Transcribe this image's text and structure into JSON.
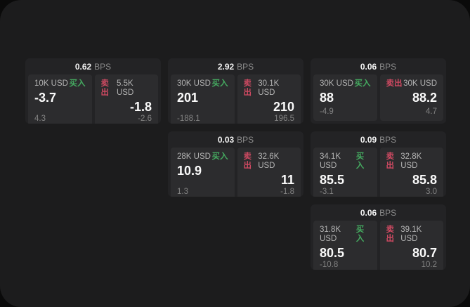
{
  "page": {
    "background": "#0a0a0a",
    "panel_background": "#1c1c1d"
  },
  "colors": {
    "buy_green": "#45aa60",
    "sell_red": "#d04a62",
    "price_white": "#fafafa",
    "muted_gray": "#828282"
  },
  "labels": {
    "bps_unit": "BPS",
    "buy": "买入",
    "sell": "卖出"
  },
  "cards": [
    {
      "row": 1,
      "col": 1,
      "bps": "0.62",
      "buy": {
        "size": "10K USD",
        "price": "-3.7",
        "delta": "4.3"
      },
      "sell": {
        "size": "5.5K USD",
        "price": "-1.8",
        "delta": "-2.6"
      }
    },
    {
      "row": 1,
      "col": 2,
      "bps": "2.92",
      "buy": {
        "size": "30K USD",
        "price": "201",
        "delta": "-188.1"
      },
      "sell": {
        "size": "30.1K USD",
        "price": "210",
        "delta": "196.5"
      }
    },
    {
      "row": 1,
      "col": 3,
      "bps": "0.06",
      "buy": {
        "size": "30K USD",
        "price": "88",
        "delta": "-4.9"
      },
      "sell": {
        "size": "30K USD",
        "price": "88.2",
        "delta": "4.7"
      }
    },
    {
      "row": 2,
      "col": 2,
      "bps": "0.03",
      "buy": {
        "size": "28K USD",
        "price": "10.9",
        "delta": "1.3"
      },
      "sell": {
        "size": "32.6K USD",
        "price": "11",
        "delta": "-1.8"
      }
    },
    {
      "row": 2,
      "col": 3,
      "bps": "0.09",
      "buy": {
        "size": "34.1K USD",
        "price": "85.5",
        "delta": "-3.1"
      },
      "sell": {
        "size": "32.8K USD",
        "price": "85.8",
        "delta": "3.0"
      }
    },
    {
      "row": 3,
      "col": 3,
      "bps": "0.06",
      "buy": {
        "size": "31.8K USD",
        "price": "80.5",
        "delta": "-10.8"
      },
      "sell": {
        "size": "39.1K USD",
        "price": "80.7",
        "delta": "10.2"
      }
    }
  ]
}
